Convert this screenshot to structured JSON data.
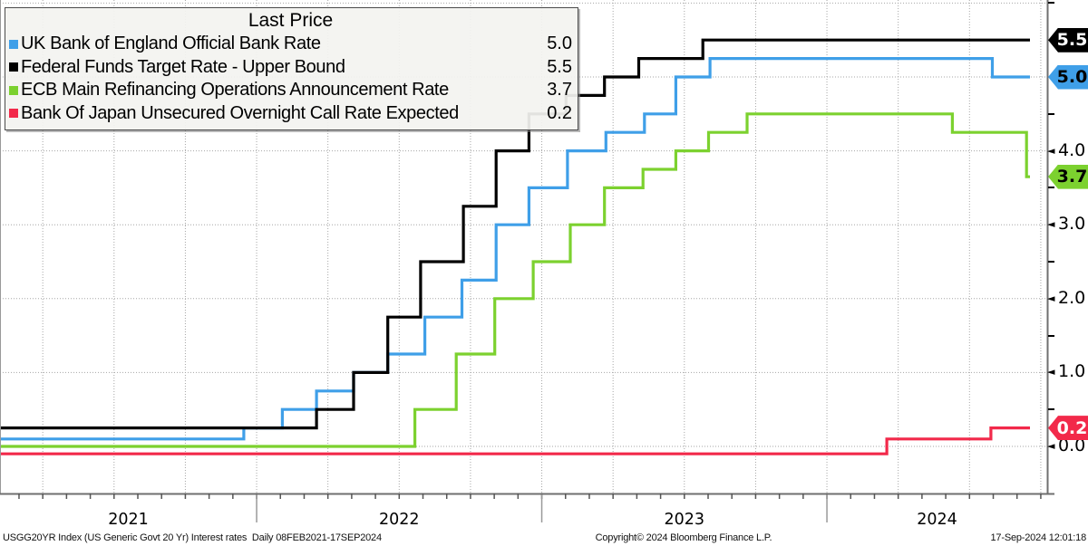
{
  "legend": {
    "title": "Last Price",
    "items": [
      {
        "label": "UK Bank of England Official Bank Rate",
        "value": "5.0",
        "color": "#3F9FE8"
      },
      {
        "label": "Federal Funds Target Rate - Upper Bound",
        "value": "5.5",
        "color": "#000000"
      },
      {
        "label": "ECB Main Refinancing Operations Announcement Rate",
        "value": "3.7",
        "color": "#7CD12F"
      },
      {
        "label": "Bank Of Japan Unsecured Overnight Call Rate Expected",
        "value": "0.2",
        "color": "#F2294A"
      }
    ]
  },
  "chart_data": {
    "type": "line",
    "subtype": "step",
    "title": "Last Price",
    "x_range_label": "08FEB2021-17SEP2024",
    "x_tick_labels": [
      "2021",
      "2022",
      "2023",
      "2024"
    ],
    "y_axis_labels": [
      {
        "value": 4,
        "text": "4.0"
      },
      {
        "value": 3,
        "text": "3.0"
      },
      {
        "value": 2,
        "text": "2.0"
      },
      {
        "value": 1,
        "text": "1.0"
      },
      {
        "value": 0,
        "text": "0.0"
      }
    ],
    "ylim": [
      -0.64,
      6.04
    ],
    "grid": "dotted",
    "legend_position": "top-left",
    "x_start_decimal_year": 2021.105,
    "x_end_decimal_year": 2024.712,
    "series": [
      {
        "name": "UK Bank of England Official Bank Rate",
        "color": "#3F9FE8",
        "last_price": "5.0",
        "tag_text_color": "#000000",
        "steps": [
          [
            2021.105,
            0.1
          ],
          [
            2021.955,
            0.25
          ],
          [
            2022.09,
            0.5
          ],
          [
            2022.21,
            0.75
          ],
          [
            2022.34,
            1.0
          ],
          [
            2022.46,
            1.25
          ],
          [
            2022.59,
            1.75
          ],
          [
            2022.72,
            2.25
          ],
          [
            2022.84,
            3.0
          ],
          [
            2022.955,
            3.5
          ],
          [
            2023.09,
            4.0
          ],
          [
            2023.225,
            4.25
          ],
          [
            2023.36,
            4.5
          ],
          [
            2023.47,
            5.0
          ],
          [
            2023.59,
            5.25
          ],
          [
            2024.58,
            5.0
          ]
        ]
      },
      {
        "name": "Federal Funds Target Rate - Upper Bound",
        "color": "#000000",
        "last_price": "5.5",
        "tag_text_color": "#FFFFFF",
        "steps": [
          [
            2021.105,
            0.25
          ],
          [
            2022.21,
            0.5
          ],
          [
            2022.34,
            1.0
          ],
          [
            2022.46,
            1.75
          ],
          [
            2022.575,
            2.5
          ],
          [
            2022.725,
            3.25
          ],
          [
            2022.84,
            4.0
          ],
          [
            2022.955,
            4.5
          ],
          [
            2023.085,
            4.75
          ],
          [
            2023.22,
            5.0
          ],
          [
            2023.34,
            5.25
          ],
          [
            2023.565,
            5.5
          ]
        ]
      },
      {
        "name": "ECB Main Refinancing Operations Announcement Rate",
        "color": "#7CD12F",
        "last_price": "3.7",
        "tag_text_color": "#000000",
        "steps": [
          [
            2021.105,
            0.0
          ],
          [
            2022.555,
            0.5
          ],
          [
            2022.7,
            1.25
          ],
          [
            2022.835,
            2.0
          ],
          [
            2022.97,
            2.5
          ],
          [
            2023.1,
            3.0
          ],
          [
            2023.22,
            3.5
          ],
          [
            2023.355,
            3.75
          ],
          [
            2023.47,
            4.0
          ],
          [
            2023.585,
            4.25
          ],
          [
            2023.72,
            4.5
          ],
          [
            2024.44,
            4.25
          ],
          [
            2024.7,
            3.65
          ]
        ]
      },
      {
        "name": "Bank Of Japan Unsecured Overnight Call Rate Expected",
        "color": "#F2294A",
        "last_price": "0.2",
        "tag_text_color": "#FFFFFF",
        "steps": [
          [
            2021.105,
            -0.1
          ],
          [
            2024.21,
            0.1
          ],
          [
            2024.575,
            0.25
          ]
        ]
      }
    ]
  },
  "footer": {
    "left": "USGG20YR Index (US Generic Govt 20 Yr) Interest rates  Daily 08FEB2021-17SEP2024",
    "center": "Copyright© 2024 Bloomberg Finance L.P.",
    "right": "17-Sep-2024 12:01:18"
  }
}
